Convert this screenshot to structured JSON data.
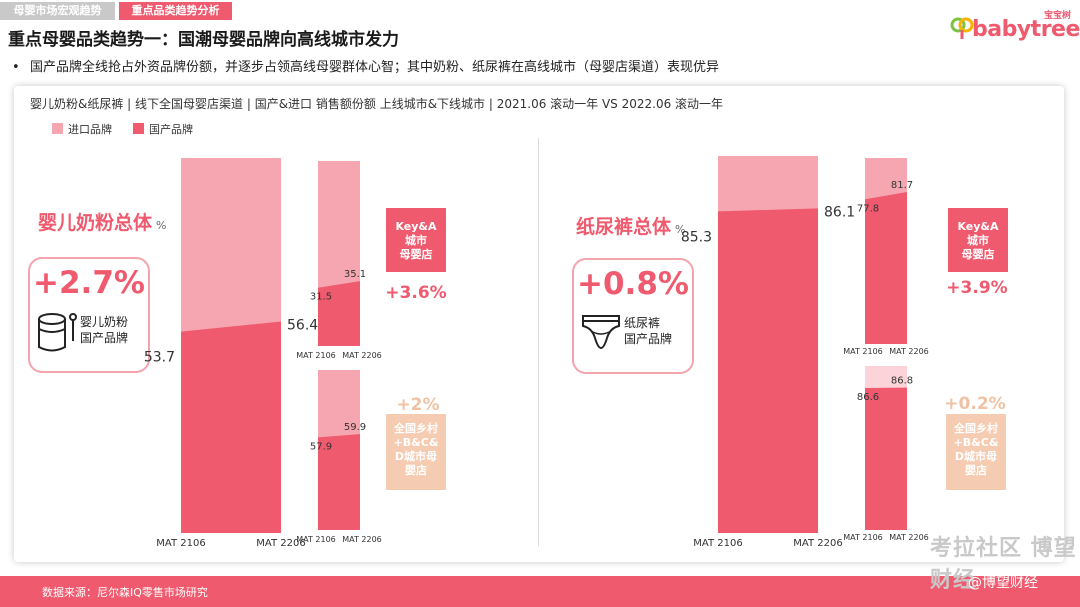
{
  "tabs": [
    "母婴市场宏观趋势",
    "重点品类趋势分析"
  ],
  "logo": {
    "cn": "宝宝树",
    "en": "babytree"
  },
  "title": "重点母婴品类趋势一：国潮母婴品牌向高线城市发力",
  "bullet": "国产品牌全线抢占外资品牌份额，并逐步占领高线母婴群体心智；其中奶粉、纸尿裤在高线城市（母婴店渠道）表现优异",
  "subtitle": "婴儿奶粉&纸尿裤 | 线下全国母婴店渠道 | 国产&进口 销售额份额 上线城市&下线城市 | 2021.06 滚动一年 VS 2022.06 滚动一年",
  "legend": {
    "import": "进口品牌",
    "domestic": "国产品牌"
  },
  "colors": {
    "import": "#f6a6b0",
    "domestic": "#ef5a6e",
    "light": "#fbd3d8",
    "tan": "#f5cbb2",
    "accent": "#ef5a6e"
  },
  "left": {
    "category": "婴儿奶粉总体",
    "unit": "%",
    "kpi_value": "+2.7%",
    "kpi_label": [
      "婴儿奶粉",
      "国产品牌"
    ],
    "kpi_icon": "milk-can-icon",
    "badge_top": [
      "Key&A",
      "城市",
      "母婴店"
    ],
    "change_top": "+3.6%",
    "badge_bottom": [
      "全国乡村",
      "+B&C&",
      "D城市母",
      "婴店"
    ],
    "change_bottom": "+2%"
  },
  "right": {
    "category": "纸尿裤总体",
    "unit": "%",
    "kpi_value": "+0.8%",
    "kpi_label": [
      "纸尿裤",
      "国产品牌"
    ],
    "kpi_icon": "diaper-icon",
    "badge_top": [
      "Key&A",
      "城市",
      "母婴店"
    ],
    "change_top": "+3.9%",
    "badge_bottom": [
      "全国乡村",
      "+B&C&",
      "D城市母",
      "婴店"
    ],
    "change_bottom": "+0.2%"
  },
  "footer": "数据来源：尼尔森IQ零售市场研究",
  "watermark": "考拉社区 博望财经",
  "watermark_handle": "@博望财经",
  "chart_data": [
    {
      "type": "area",
      "name": "婴儿奶粉总体",
      "categories": [
        "MAT 2106",
        "MAT 2206"
      ],
      "series": [
        {
          "name": "国产品牌",
          "values": [
            53.7,
            56.4
          ]
        }
      ],
      "ylim": [
        0,
        100
      ]
    },
    {
      "type": "area",
      "name": "Key&A城市母婴店 (婴儿奶粉)",
      "categories": [
        "MAT 2106",
        "MAT 2206"
      ],
      "series": [
        {
          "name": "国产品牌",
          "values": [
            31.5,
            35.1
          ]
        }
      ],
      "ylim": [
        0,
        100
      ]
    },
    {
      "type": "area",
      "name": "全国乡村+B&C&D城市母婴店 (婴儿奶粉)",
      "categories": [
        "MAT 2106",
        "MAT 2206"
      ],
      "series": [
        {
          "name": "国产品牌",
          "values": [
            57.9,
            59.9
          ]
        }
      ],
      "ylim": [
        0,
        100
      ]
    },
    {
      "type": "area",
      "name": "纸尿裤总体",
      "categories": [
        "MAT 2106",
        "MAT 2206"
      ],
      "series": [
        {
          "name": "国产品牌",
          "values": [
            85.3,
            86.1
          ]
        }
      ],
      "ylim": [
        0,
        100
      ]
    },
    {
      "type": "area",
      "name": "Key&A城市母婴店 (纸尿裤)",
      "categories": [
        "MAT 2106",
        "MAT 2206"
      ],
      "series": [
        {
          "name": "国产品牌",
          "values": [
            77.8,
            81.7
          ]
        }
      ],
      "ylim": [
        0,
        100
      ]
    },
    {
      "type": "area",
      "name": "全国乡村+B&C&D城市母婴店 (纸尿裤)",
      "categories": [
        "MAT 2106",
        "MAT 2206"
      ],
      "series": [
        {
          "name": "国产品牌",
          "values": [
            86.6,
            86.8
          ]
        }
      ],
      "ylim": [
        0,
        100
      ]
    }
  ]
}
